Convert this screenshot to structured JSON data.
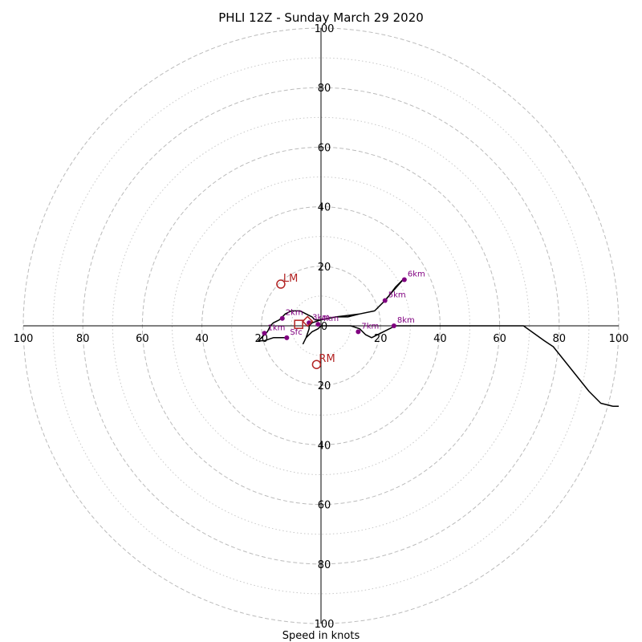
{
  "chart_data": {
    "type": "hodograph",
    "title": "PHLI 12Z - Sunday March 29 2020",
    "xlabel": "Speed in knots",
    "xlim": [
      -100,
      100
    ],
    "ylim": [
      -100,
      100
    ],
    "grid": true,
    "ring_values": [
      20,
      40,
      60,
      80,
      100
    ],
    "ring_minor_values": [
      10,
      30,
      50,
      70,
      90
    ],
    "axis_tick_values": [
      100,
      80,
      60,
      40,
      20,
      0,
      20,
      40,
      60,
      80,
      100
    ],
    "x_ticks": [
      {
        "value": -100,
        "label": "100"
      },
      {
        "value": -80,
        "label": "80"
      },
      {
        "value": -60,
        "label": "60"
      },
      {
        "value": -40,
        "label": "40"
      },
      {
        "value": -20,
        "label": "20"
      },
      {
        "value": 20,
        "label": "20"
      },
      {
        "value": 40,
        "label": "40"
      },
      {
        "value": 60,
        "label": "60"
      },
      {
        "value": 80,
        "label": "80"
      },
      {
        "value": 100,
        "label": "100"
      }
    ],
    "y_ticks": [
      {
        "value": 100,
        "label": "100"
      },
      {
        "value": 80,
        "label": "80"
      },
      {
        "value": 60,
        "label": "60"
      },
      {
        "value": 40,
        "label": "40"
      },
      {
        "value": 20,
        "label": "20"
      },
      {
        "value": 0,
        "label": "0"
      },
      {
        "value": -20,
        "label": "20"
      },
      {
        "value": -40,
        "label": "40"
      },
      {
        "value": -60,
        "label": "60"
      },
      {
        "value": -80,
        "label": "80"
      },
      {
        "value": -100,
        "label": "100"
      }
    ],
    "trace": {
      "color": "#000000",
      "points": [
        [
          -11,
          -4
        ],
        [
          -16,
          -4
        ],
        [
          -19,
          -5
        ],
        [
          -21,
          -5
        ],
        [
          -20,
          -4
        ],
        [
          -18,
          -2
        ],
        [
          -17,
          0
        ],
        [
          -16,
          1
        ],
        [
          -14,
          2
        ],
        [
          -13,
          3
        ],
        [
          -12,
          4
        ],
        [
          -10,
          5
        ],
        [
          -7,
          5
        ],
        [
          -5,
          4
        ],
        [
          -3,
          3
        ],
        [
          -2,
          2
        ],
        [
          0,
          2
        ],
        [
          5,
          3
        ],
        [
          9,
          3
        ],
        [
          13,
          4
        ],
        [
          18,
          5
        ],
        [
          22,
          9
        ],
        [
          25,
          13
        ],
        [
          28,
          16
        ],
        [
          21,
          8
        ],
        [
          18,
          5
        ],
        [
          13,
          4
        ],
        [
          5,
          3
        ],
        [
          0,
          2
        ],
        [
          -3,
          1
        ],
        [
          -4,
          0
        ],
        [
          -4,
          -1
        ],
        [
          -5,
          -4
        ],
        [
          -6,
          -6
        ],
        [
          -5,
          -4
        ],
        [
          -3,
          -2
        ],
        [
          -1,
          -1
        ],
        [
          0,
          0
        ],
        [
          5,
          0
        ],
        [
          10,
          0
        ],
        [
          13,
          -1
        ],
        [
          15,
          -3
        ],
        [
          17,
          -4
        ],
        [
          19,
          -3
        ],
        [
          23,
          -1
        ],
        [
          25,
          0
        ],
        [
          35,
          0
        ],
        [
          50,
          0
        ],
        [
          65,
          0
        ],
        [
          68,
          0
        ],
        [
          75,
          -5
        ],
        [
          78,
          -7
        ],
        [
          82,
          -12
        ],
        [
          86,
          -17
        ],
        [
          90,
          -22
        ],
        [
          94,
          -26
        ],
        [
          98,
          -27
        ],
        [
          100,
          -27
        ]
      ]
    },
    "height_points": [
      {
        "label": "Sfc",
        "u": -11.5,
        "v": -4
      },
      {
        "label": "1km",
        "u": -19,
        "v": -2.5
      },
      {
        "label": "2km",
        "u": -13,
        "v": 2.5
      },
      {
        "label": "3km",
        "u": -4,
        "v": 1
      },
      {
        "label": "4km",
        "u": -1,
        "v": 0.5
      },
      {
        "label": "7km",
        "u": 12.5,
        "v": -2
      },
      {
        "label": "8km",
        "u": 24.5,
        "v": 0
      },
      {
        "label": "5km",
        "u": 21.5,
        "v": 8.5
      },
      {
        "label": "6km",
        "u": 28,
        "v": 15.5
      }
    ],
    "height_color": "#800080",
    "markers": [
      {
        "label": "LM",
        "u": -13.5,
        "v": 14,
        "shape": "circle"
      },
      {
        "label": "RM",
        "u": -1.5,
        "v": -13,
        "shape": "circle"
      },
      {
        "label": "",
        "u": -7.5,
        "v": 0.5,
        "shape": "square"
      },
      {
        "label": "",
        "u": -4.5,
        "v": 1.5,
        "shape": "diamond"
      }
    ],
    "marker_color": "#b22222"
  }
}
